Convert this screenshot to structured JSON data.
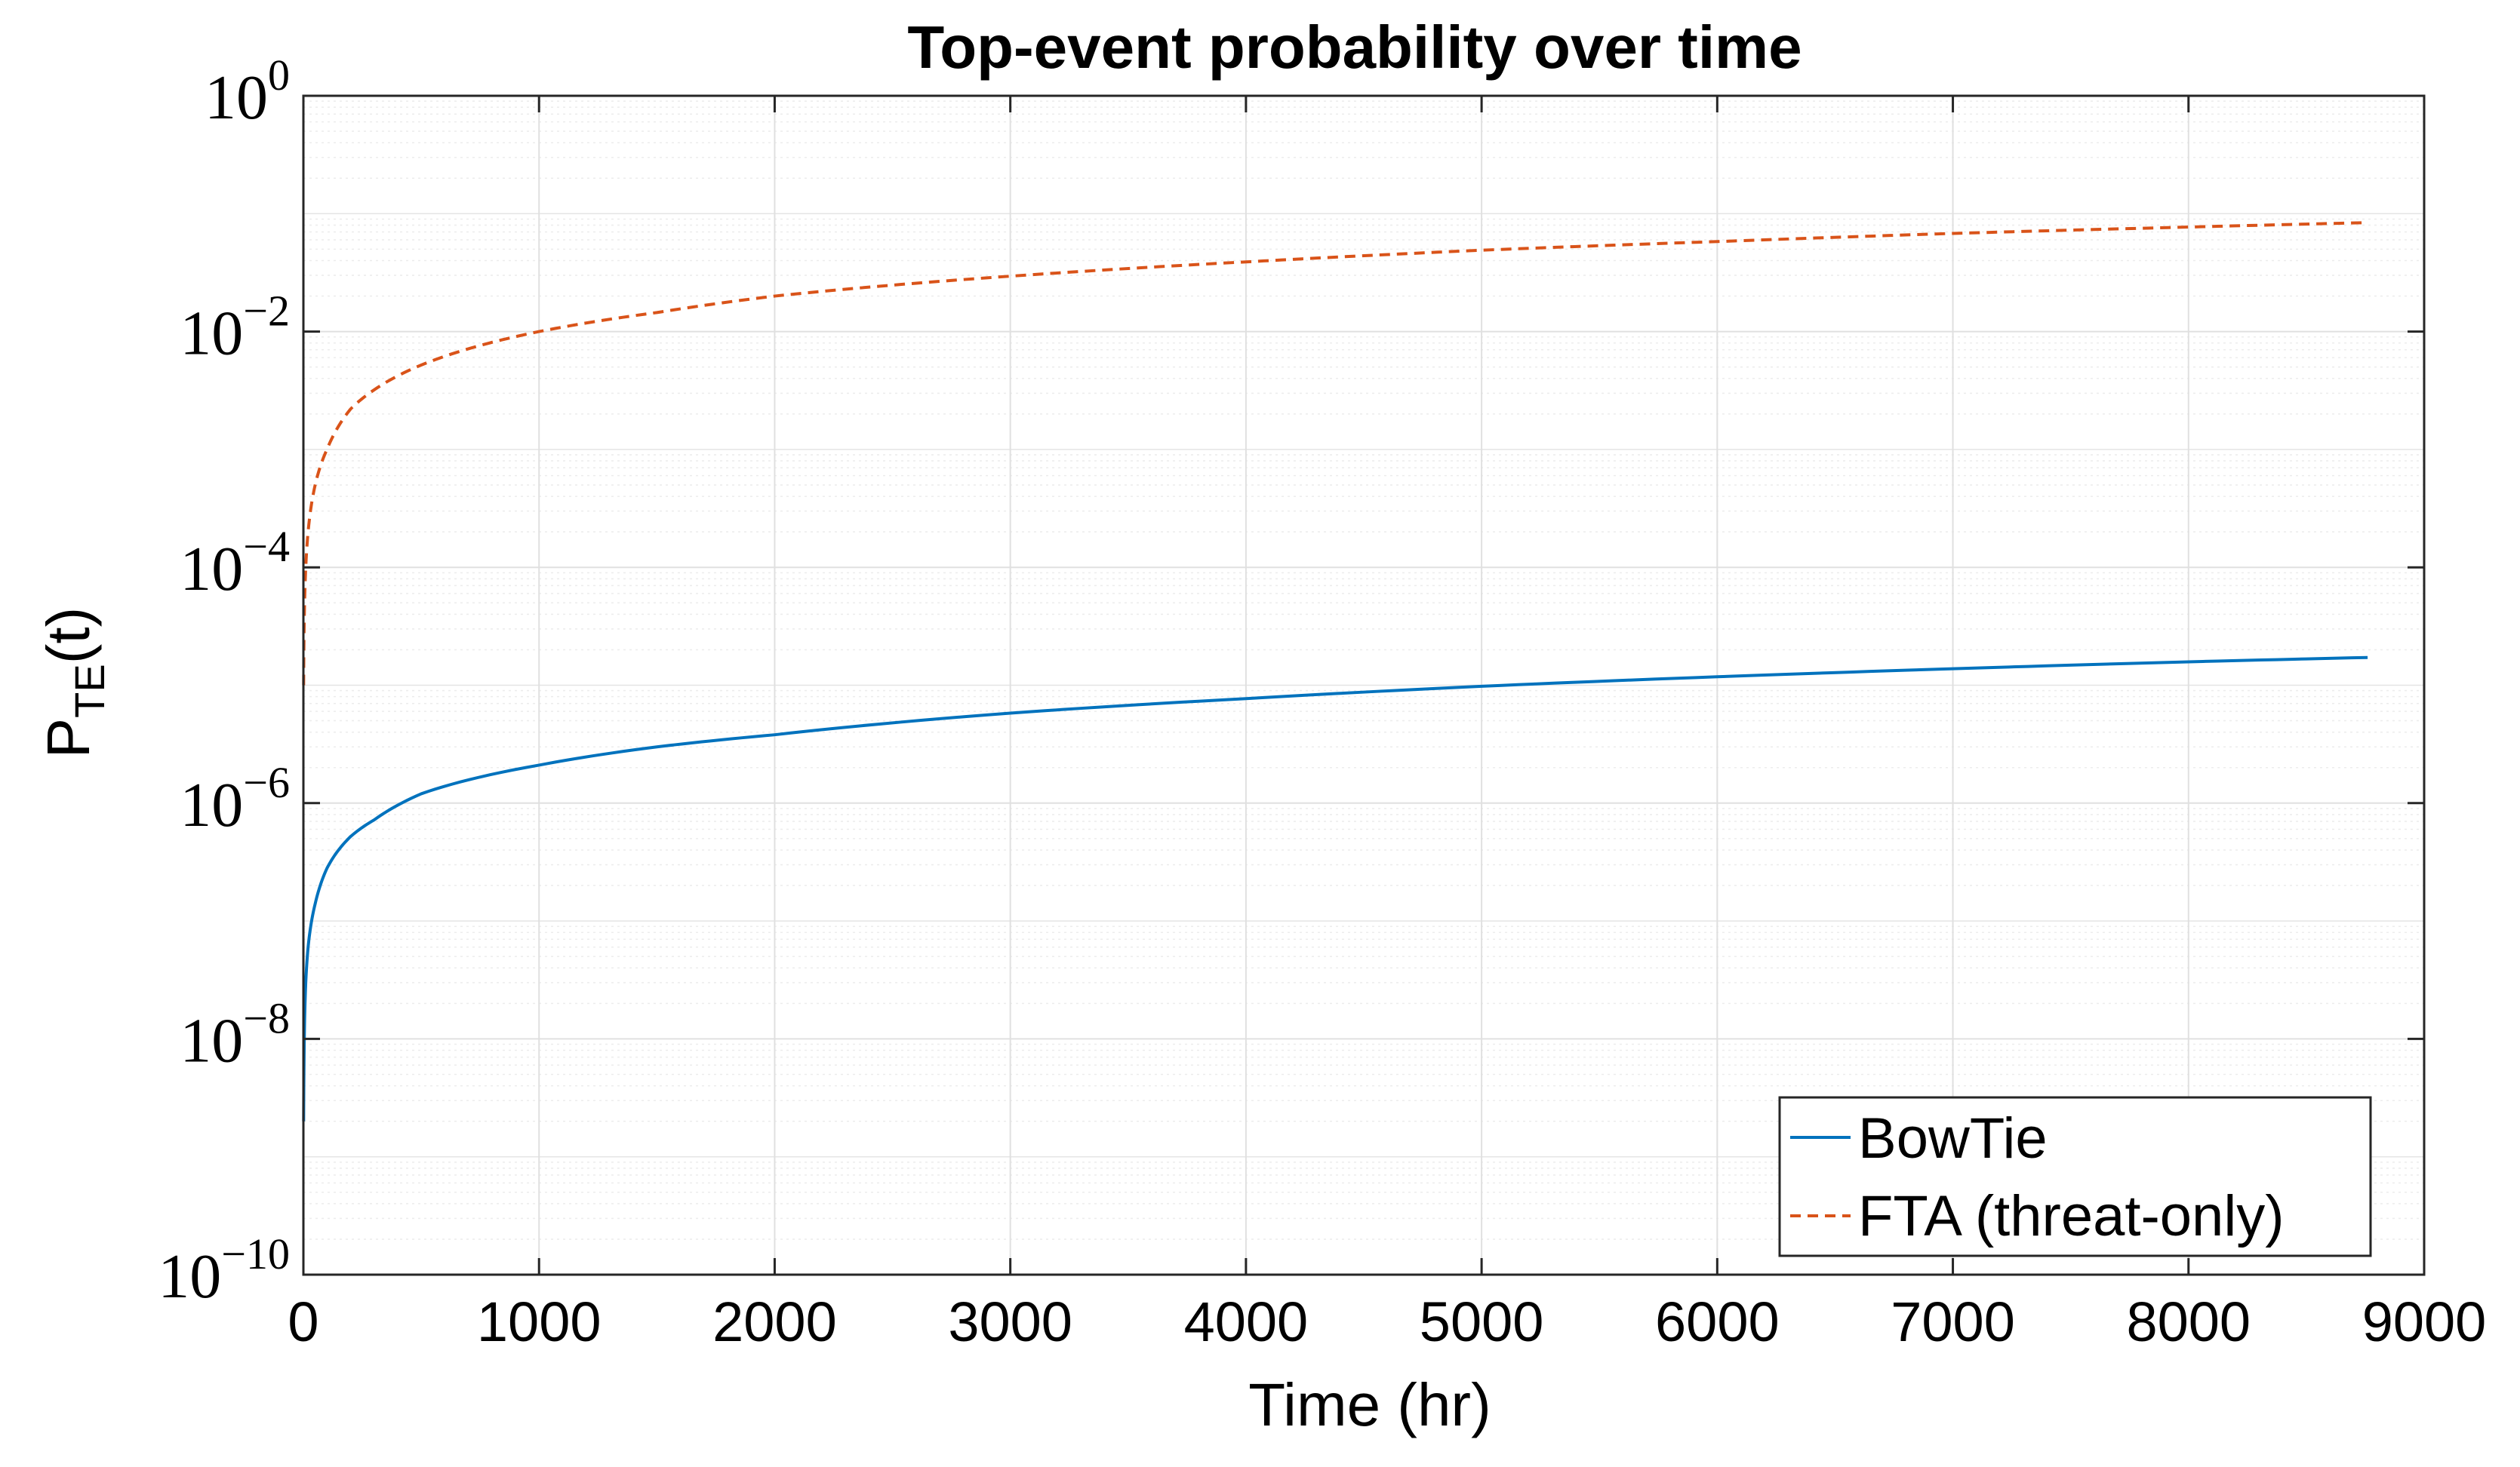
{
  "chart_data": {
    "type": "line",
    "title": "Top-event probability over time",
    "xlabel": "Time (hr)",
    "ylabel": {
      "main": "P",
      "subscript": "TE",
      "suffix": "(t)"
    },
    "xlim": [
      0,
      9000
    ],
    "ylim": [
      1e-10,
      1
    ],
    "yscale": "log",
    "grid": true,
    "minor_grid": true,
    "legend_position": "bottom-right",
    "xticks": [
      {
        "value": 0,
        "label": "0"
      },
      {
        "value": 1000,
        "label": "1000"
      },
      {
        "value": 2000,
        "label": "2000"
      },
      {
        "value": 3000,
        "label": "3000"
      },
      {
        "value": 4000,
        "label": "4000"
      },
      {
        "value": 5000,
        "label": "5000"
      },
      {
        "value": 6000,
        "label": "6000"
      },
      {
        "value": 7000,
        "label": "7000"
      },
      {
        "value": 8000,
        "label": "8000"
      },
      {
        "value": 9000,
        "label": "9000"
      }
    ],
    "yticks": [
      {
        "value": 1.0,
        "base": "10",
        "exp": "0"
      },
      {
        "value": 0.01,
        "base": "10",
        "exp": "−2"
      },
      {
        "value": 0.0001,
        "base": "10",
        "exp": "−4"
      },
      {
        "value": 1e-06,
        "base": "10",
        "exp": "−6"
      },
      {
        "value": 1e-08,
        "base": "10",
        "exp": "−8"
      },
      {
        "value": 1e-10,
        "base": "10",
        "exp": "−10"
      }
    ],
    "series": [
      {
        "name": "BowTie",
        "color": "#0072BD",
        "dash": "solid",
        "x": [
          1,
          5,
          10,
          20,
          50,
          100,
          200,
          300,
          500,
          1000,
          1500,
          2000,
          3000,
          4000,
          5000,
          6000,
          7000,
          8000,
          8760
        ],
        "y": [
          2e-09,
          1.4e-08,
          3e-08,
          6e-08,
          1.4e-07,
          2.8e-07,
          5.2e-07,
          7.2e-07,
          1.2e-06,
          2.1e-06,
          3e-06,
          3.8e-06,
          5.8e-06,
          7.7e-06,
          9.8e-06,
          1.18e-05,
          1.38e-05,
          1.58e-05,
          1.72e-05
        ]
      },
      {
        "name": "FTA (threat-only)",
        "color": "#D95319",
        "dash": "dashed",
        "x": [
          1,
          5,
          10,
          20,
          50,
          100,
          200,
          300,
          500,
          1000,
          1500,
          2000,
          3000,
          4000,
          5000,
          6000,
          7000,
          8000,
          8760
        ],
        "y": [
          1e-05,
          5e-05,
          0.0001,
          0.0002,
          0.0005,
          0.001,
          0.0022,
          0.0032,
          0.0052,
          0.01,
          0.0145,
          0.02,
          0.0295,
          0.039,
          0.049,
          0.058,
          0.068,
          0.077,
          0.084
        ]
      }
    ]
  }
}
